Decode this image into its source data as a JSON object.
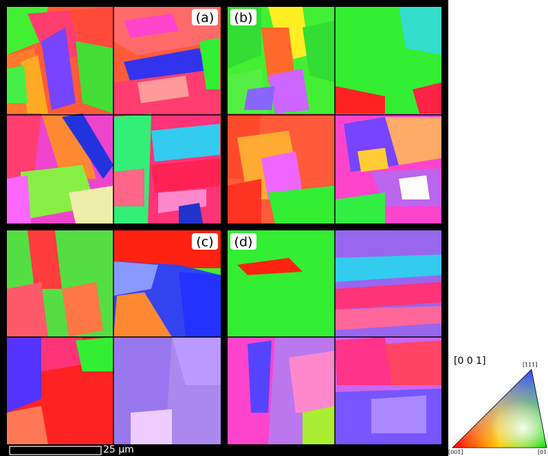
{
  "panels": [
    {
      "label": "(a)"
    },
    {
      "label": "(b)"
    },
    {
      "label": "(c)"
    },
    {
      "label": "(d)"
    }
  ],
  "scale_bar": {
    "label": "25 µm"
  },
  "legend": {
    "direction": "[0 0 1]",
    "corner_001": "[001]",
    "corner_101": "[01",
    "corner_111": "[111]"
  },
  "colors": {
    "red": "#ff2a1a",
    "green": "#22ee22",
    "blue": "#2233ee",
    "magenta": "#ff33cc",
    "purple": "#aa66ee",
    "cyan": "#22ddee",
    "yellow": "#eeee22",
    "orange": "#ff8833",
    "pink": "#ff4488",
    "lightpurple": "#cc99ff"
  }
}
